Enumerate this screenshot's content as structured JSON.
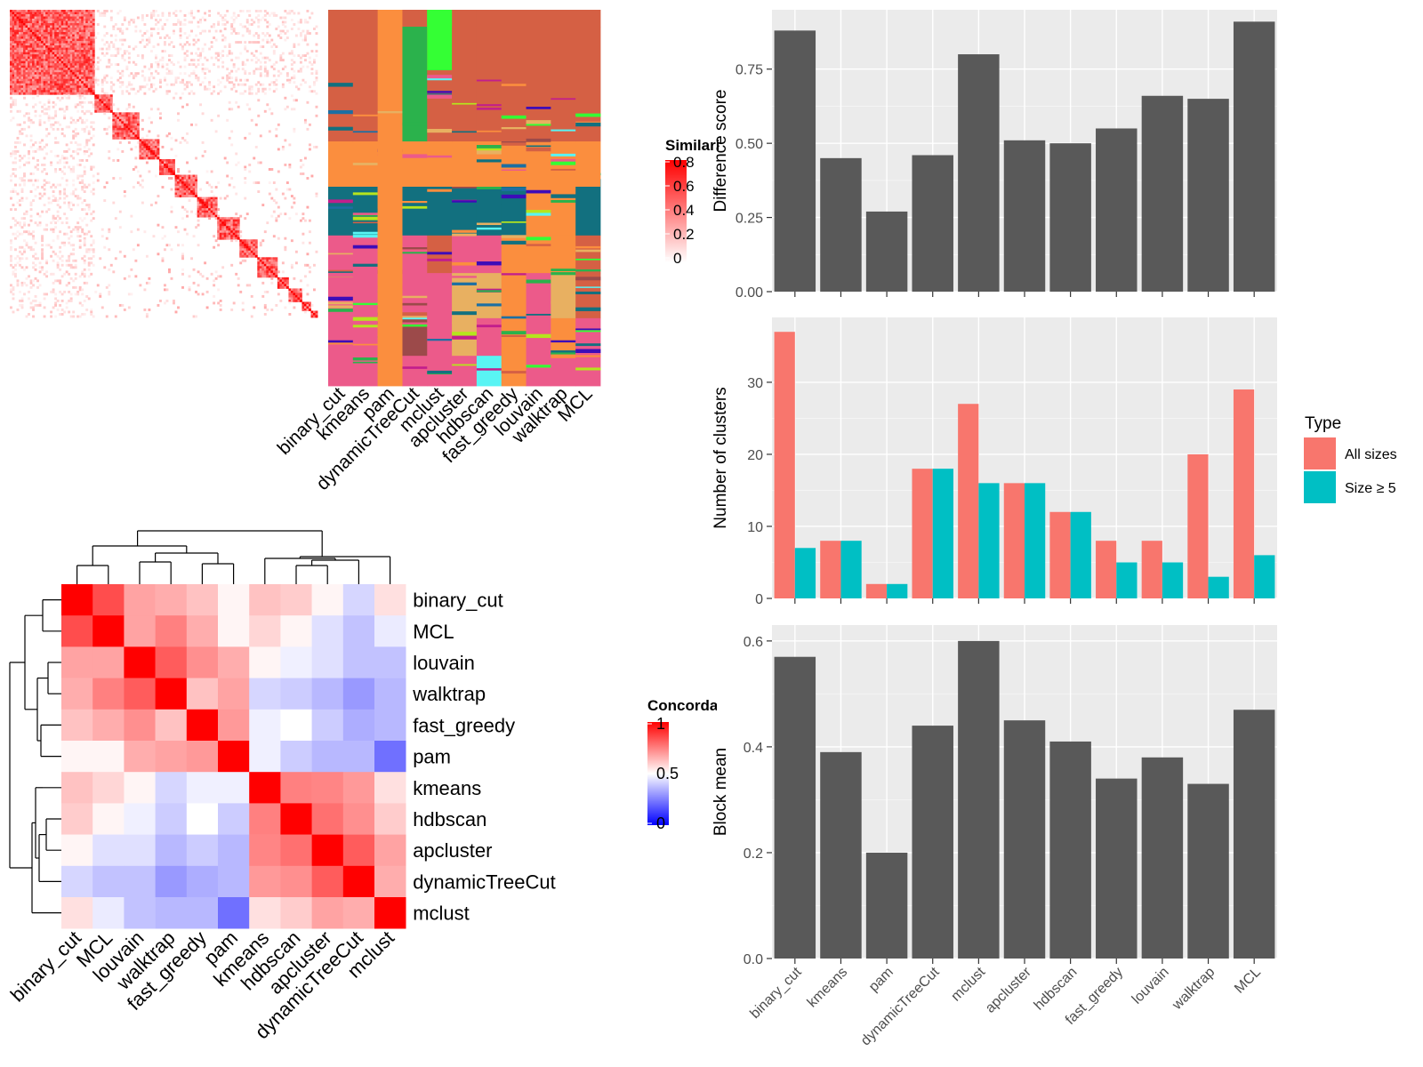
{
  "chart_data": [
    {
      "type": "heatmap",
      "panel": "similarity-heatmap",
      "legend_title": "Similarity",
      "legend_ticks": [
        "0.8",
        "0.6",
        "0.4",
        "0.2",
        "0"
      ],
      "color_low": "#ffffff",
      "color_high": "#ff0000",
      "block_sizes": [
        38,
        8,
        12,
        9,
        7,
        10,
        9,
        10,
        8,
        9,
        5,
        6,
        4,
        3
      ],
      "column_labels": [
        "binary_cut",
        "kmeans",
        "pam",
        "dynamicTreeCut",
        "mclust",
        "apcluster",
        "hdbscan",
        "fast_greedy",
        "louvain",
        "walktrap",
        "MCL"
      ]
    },
    {
      "type": "heatmap",
      "panel": "concordance-heatmap",
      "legend_title": "Concordance",
      "legend_ticks": [
        "1",
        "0.5",
        "0"
      ],
      "color_low": "#0000ff",
      "color_mid": "#ffffff",
      "color_high": "#ff0000",
      "row_labels": [
        "binary_cut",
        "MCL",
        "louvain",
        "walktrap",
        "fast_greedy",
        "pam",
        "kmeans",
        "hdbscan",
        "apcluster",
        "dynamicTreeCut",
        "mclust"
      ],
      "column_labels": [
        "binary_cut",
        "MCL",
        "louvain",
        "walktrap",
        "fast_greedy",
        "pam",
        "kmeans",
        "hdbscan",
        "apcluster",
        "dynamicTreeCut",
        "mclust"
      ],
      "matrix": [
        [
          1.0,
          0.85,
          0.68,
          0.66,
          0.62,
          0.52,
          0.62,
          0.6,
          0.52,
          0.42,
          0.56
        ],
        [
          0.85,
          1.0,
          0.68,
          0.75,
          0.66,
          0.52,
          0.58,
          0.52,
          0.44,
          0.38,
          0.46
        ],
        [
          0.68,
          0.68,
          1.0,
          0.82,
          0.72,
          0.66,
          0.52,
          0.47,
          0.44,
          0.38,
          0.38
        ],
        [
          0.66,
          0.75,
          0.82,
          1.0,
          0.62,
          0.68,
          0.42,
          0.4,
          0.36,
          0.3,
          0.36
        ],
        [
          0.62,
          0.66,
          0.72,
          0.62,
          1.0,
          0.7,
          0.47,
          0.5,
          0.4,
          0.34,
          0.36
        ],
        [
          0.52,
          0.52,
          0.66,
          0.68,
          0.7,
          1.0,
          0.47,
          0.4,
          0.36,
          0.36,
          0.22
        ],
        [
          0.62,
          0.58,
          0.52,
          0.42,
          0.47,
          0.47,
          1.0,
          0.75,
          0.74,
          0.7,
          0.56
        ],
        [
          0.6,
          0.52,
          0.47,
          0.4,
          0.5,
          0.4,
          0.75,
          1.0,
          0.78,
          0.72,
          0.6
        ],
        [
          0.52,
          0.44,
          0.44,
          0.36,
          0.4,
          0.36,
          0.74,
          0.78,
          1.0,
          0.82,
          0.68
        ],
        [
          0.42,
          0.38,
          0.38,
          0.3,
          0.34,
          0.36,
          0.7,
          0.72,
          0.82,
          1.0,
          0.66
        ],
        [
          0.56,
          0.46,
          0.38,
          0.36,
          0.36,
          0.22,
          0.56,
          0.6,
          0.68,
          0.66,
          1.0
        ]
      ]
    },
    {
      "type": "bar",
      "panel": "difference-score",
      "categories": [
        "binary_cut",
        "kmeans",
        "pam",
        "dynamicTreeCut",
        "mclust",
        "apcluster",
        "hdbscan",
        "fast_greedy",
        "louvain",
        "walktrap",
        "MCL"
      ],
      "values": [
        0.88,
        0.45,
        0.27,
        0.46,
        0.8,
        0.51,
        0.5,
        0.55,
        0.66,
        0.65,
        0.91
      ],
      "ylabel": "Difference score",
      "ylim": [
        0,
        0.95
      ],
      "yticks": [
        0.0,
        0.25,
        0.5,
        0.75
      ],
      "ytick_labels": [
        "0.00",
        "0.25",
        "0.50",
        "0.75"
      ],
      "grid": true
    },
    {
      "type": "bar",
      "panel": "number-of-clusters",
      "categories": [
        "binary_cut",
        "kmeans",
        "pam",
        "dynamicTreeCut",
        "mclust",
        "apcluster",
        "hdbscan",
        "fast_greedy",
        "louvain",
        "walktrap",
        "MCL"
      ],
      "series": [
        {
          "name": "All sizes",
          "color": "#f8766d",
          "values": [
            37,
            8,
            2,
            18,
            27,
            16,
            12,
            8,
            8,
            20,
            29
          ]
        },
        {
          "name": "Size ≥ 5",
          "color": "#00bfc4",
          "values": [
            7,
            8,
            2,
            18,
            16,
            16,
            12,
            5,
            5,
            3,
            6
          ]
        }
      ],
      "ylabel": "Number of clusters",
      "ylim": [
        0,
        39
      ],
      "yticks": [
        0,
        10,
        20,
        30
      ],
      "ytick_labels": [
        "0",
        "10",
        "20",
        "30"
      ],
      "legend_title": "Type",
      "legend_position": "right",
      "grid": true
    },
    {
      "type": "bar",
      "panel": "block-mean",
      "categories": [
        "binary_cut",
        "kmeans",
        "pam",
        "dynamicTreeCut",
        "mclust",
        "apcluster",
        "hdbscan",
        "fast_greedy",
        "louvain",
        "walktrap",
        "MCL"
      ],
      "values": [
        0.57,
        0.39,
        0.2,
        0.44,
        0.6,
        0.45,
        0.41,
        0.34,
        0.38,
        0.33,
        0.47
      ],
      "ylabel": "Block mean",
      "ylim": [
        0,
        0.63
      ],
      "yticks": [
        0.0,
        0.2,
        0.4,
        0.6
      ],
      "ytick_labels": [
        "0.0",
        "0.2",
        "0.4",
        "0.6"
      ],
      "grid": true
    }
  ]
}
